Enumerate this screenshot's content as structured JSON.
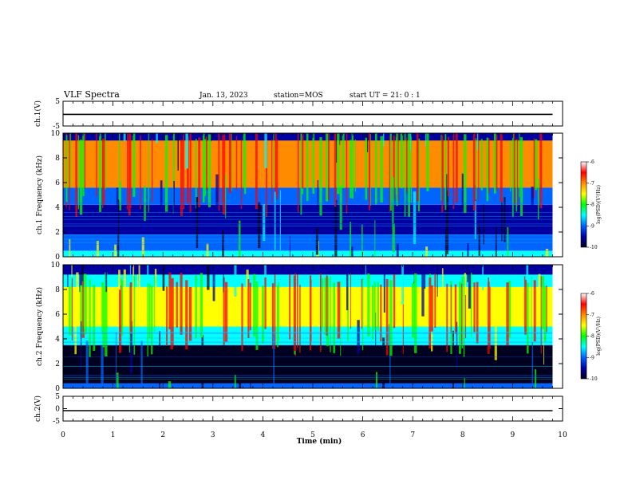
{
  "header": {
    "title": "VLF Spectra",
    "date": "Jan. 13, 2023",
    "station": "station=MOS",
    "start": "start UT =  21: 0  : 1"
  },
  "colorbar": {
    "label": "log(PSD)(V²/Hz)",
    "ticks": [
      "-6",
      "-7",
      "-8",
      "-9",
      "-10"
    ],
    "colors": [
      "#ffffff",
      "#ff0000",
      "#ff8c00",
      "#ffff00",
      "#00ff00",
      "#00ffff",
      "#0064ff",
      "#0000a0",
      "#000020"
    ]
  },
  "chart_data": [
    {
      "type": "line",
      "name": "ch1-waveform",
      "ylabel": "ch.1(V)",
      "ylim": [
        -5,
        5
      ],
      "y_ticks": [
        "5",
        "-5"
      ],
      "x": [
        0,
        9.8
      ],
      "values": [
        -0.3,
        -0.3
      ]
    },
    {
      "type": "heatmap",
      "name": "ch1-spectrogram",
      "ylabel": "ch.1 Frequency (kHz)",
      "xlim": [
        0,
        9.8
      ],
      "ylim": [
        0,
        10
      ],
      "y_ticks": [
        "0",
        "2",
        "4",
        "6",
        "8",
        "10"
      ],
      "bands": [
        {
          "from": 0,
          "to": 0.5,
          "level": -8.5
        },
        {
          "from": 0.5,
          "to": 1.8,
          "level": -9.0
        },
        {
          "from": 1.8,
          "to": 4.2,
          "level": -9.6
        },
        {
          "from": 4.2,
          "to": 5.6,
          "level": -8.8
        },
        {
          "from": 5.6,
          "to": 9.4,
          "level": -7.2
        },
        {
          "from": 9.4,
          "to": 10,
          "level": -9.5
        }
      ]
    },
    {
      "type": "heatmap",
      "name": "ch2-spectrogram",
      "ylabel": "ch.2 Frequency (kHz)",
      "xlim": [
        0,
        9.8
      ],
      "ylim": [
        0,
        10
      ],
      "y_ticks": [
        "0",
        "2",
        "4",
        "6",
        "8",
        "10"
      ],
      "bands": [
        {
          "from": 0,
          "to": 0.4,
          "level": -9.0
        },
        {
          "from": 0.4,
          "to": 3.5,
          "level": -10.0
        },
        {
          "from": 3.5,
          "to": 5.0,
          "level": -8.6
        },
        {
          "from": 5.0,
          "to": 8.2,
          "level": -7.3
        },
        {
          "from": 8.2,
          "to": 9.2,
          "level": -8.6
        },
        {
          "from": 9.2,
          "to": 10,
          "level": -9.6
        }
      ]
    },
    {
      "type": "line",
      "name": "ch2-waveform",
      "ylabel": "ch.2(V)",
      "ylim": [
        -5,
        5
      ],
      "y_ticks": [
        "5",
        "0",
        "-5"
      ],
      "x": [
        0,
        9.8
      ],
      "values": [
        -0.8,
        -0.8
      ]
    }
  ],
  "x_axis": {
    "label": "Time (min)",
    "range": [
      0,
      10
    ],
    "ticks": [
      "0",
      "1",
      "2",
      "3",
      "4",
      "5",
      "6",
      "7",
      "8",
      "9",
      "10"
    ]
  }
}
